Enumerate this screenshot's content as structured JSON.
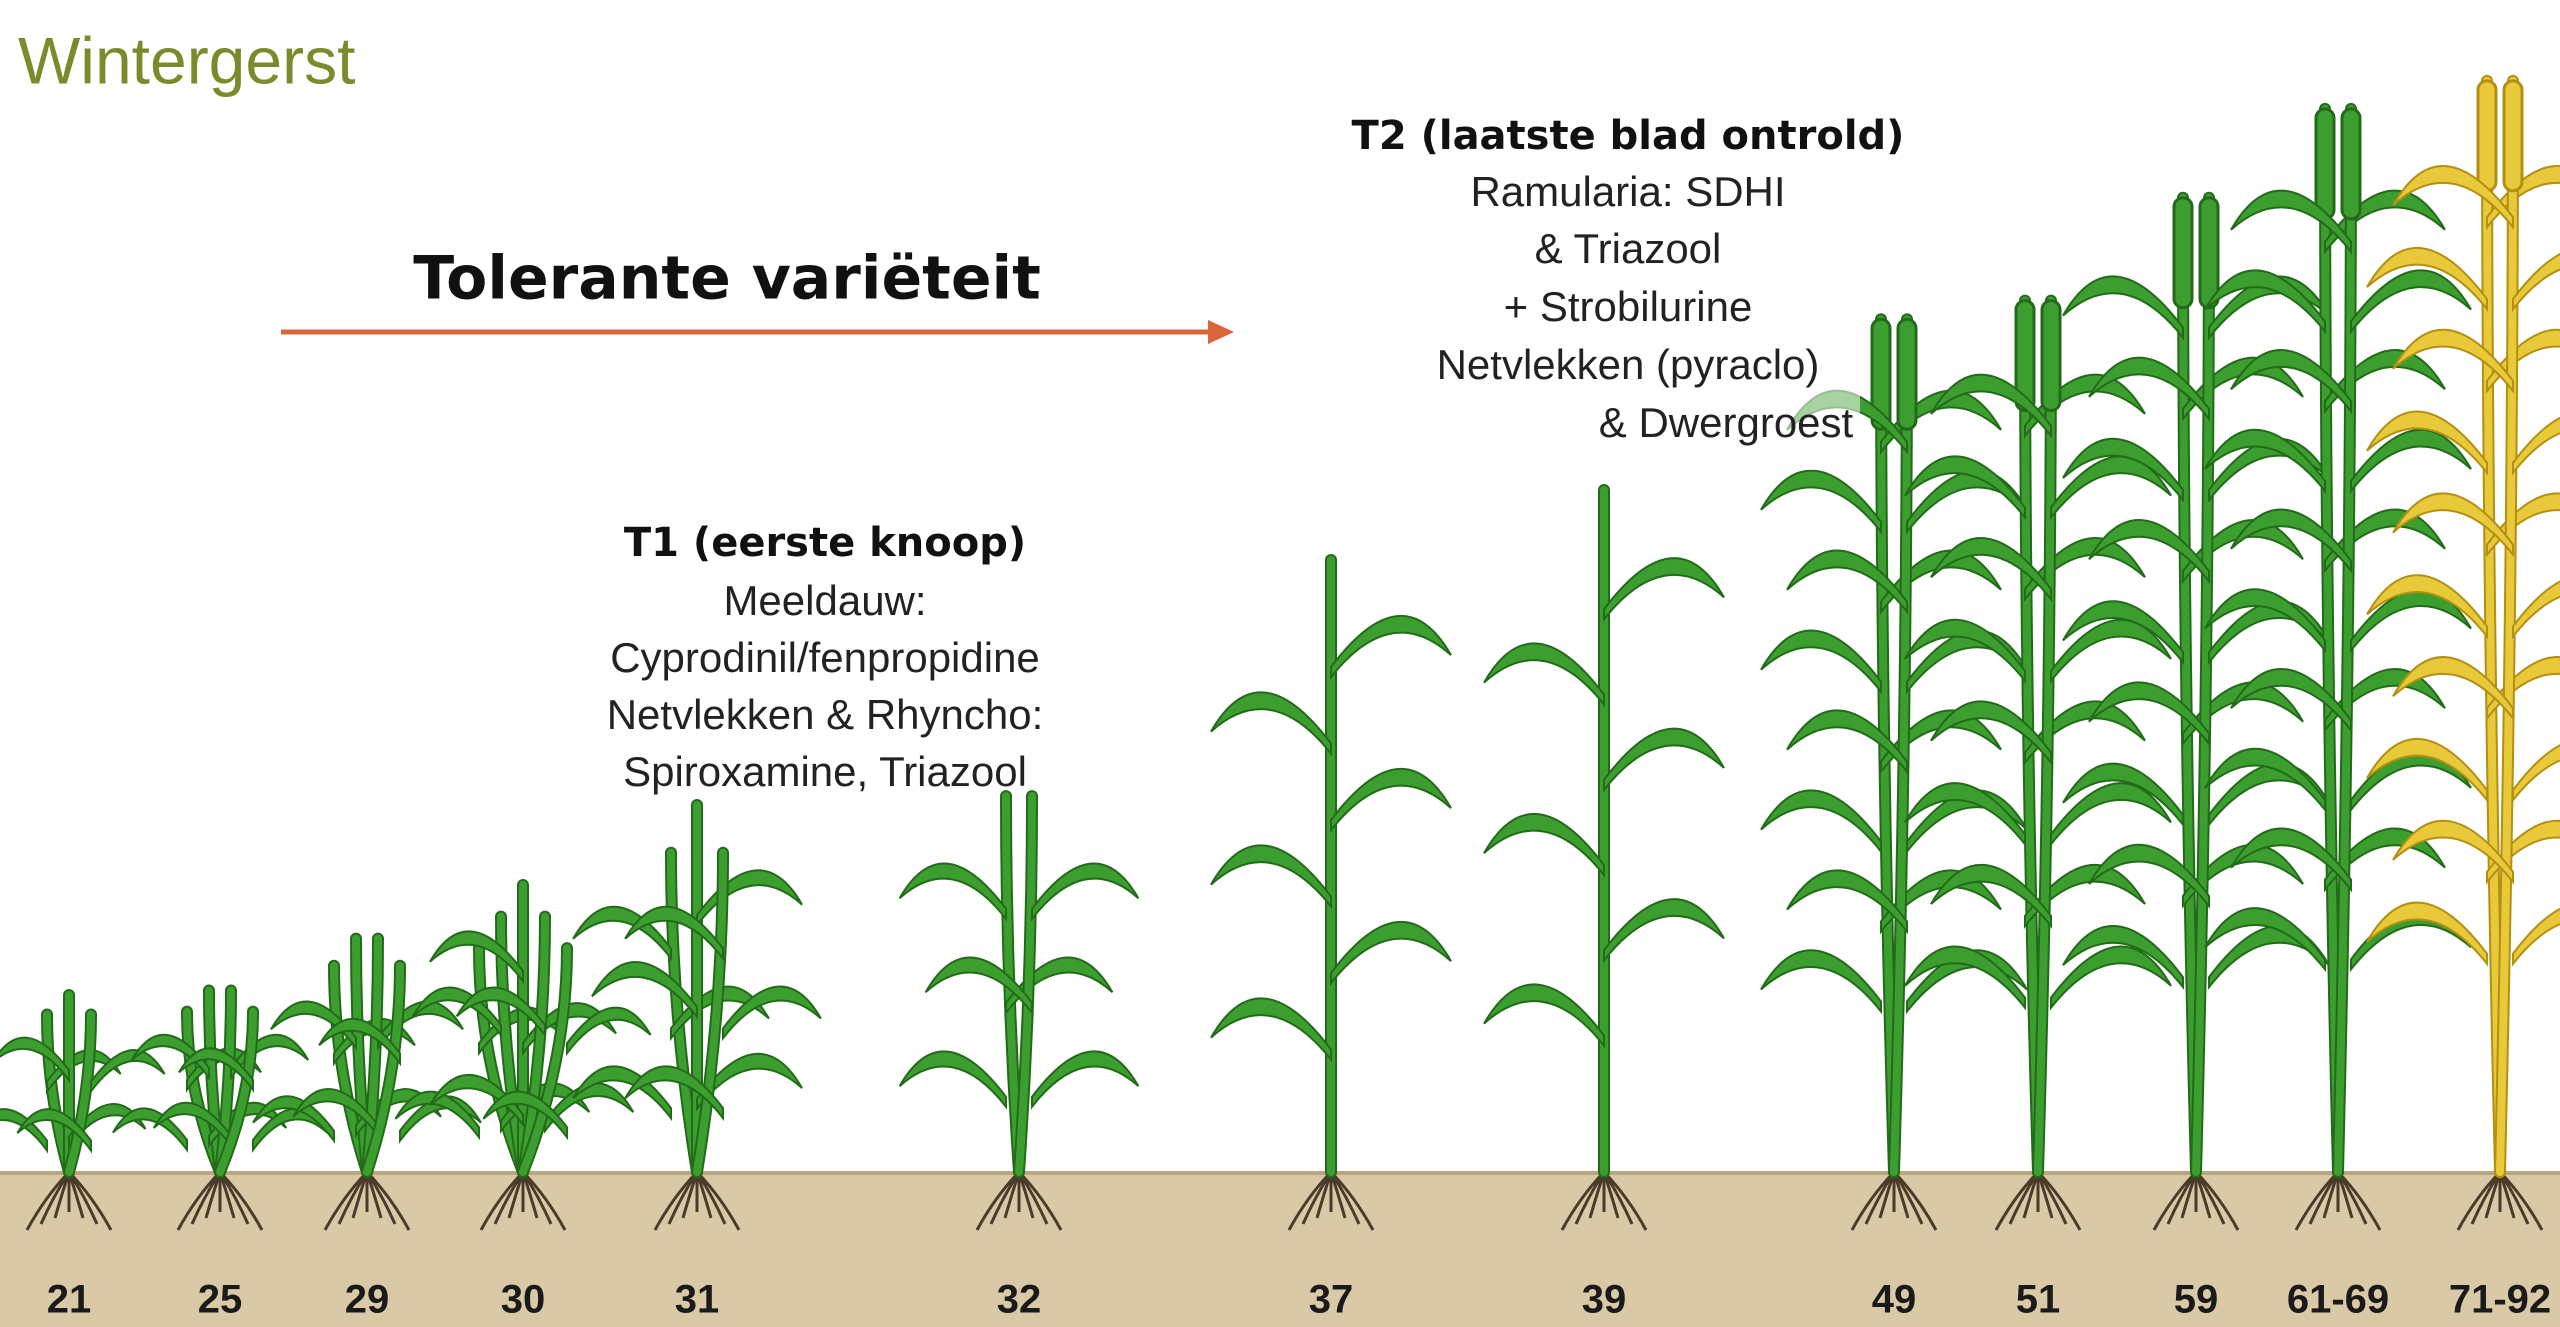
{
  "title": "Wintergerst",
  "variety_label": "Tolerante variëteit",
  "t1": {
    "heading": "T1 (eerste knoop)",
    "lines": [
      "Meeldauw:",
      "Cyprodinil/fenpropidine",
      "Netvlekken & Rhyncho:",
      "Spiroxamine, Triazool"
    ]
  },
  "t2": {
    "heading": "T2 (laatste blad ontrold)",
    "lines": [
      "Ramularia: SDHI",
      "& Triazool",
      "+ Strobilurine",
      "Netvlekken (pyraclo)",
      "& Dwergroest"
    ]
  },
  "stages": [
    "21",
    "25",
    "29",
    "30",
    "31",
    "32",
    "37",
    "39",
    "49",
    "51",
    "59",
    "61-69",
    "71-92"
  ]
}
